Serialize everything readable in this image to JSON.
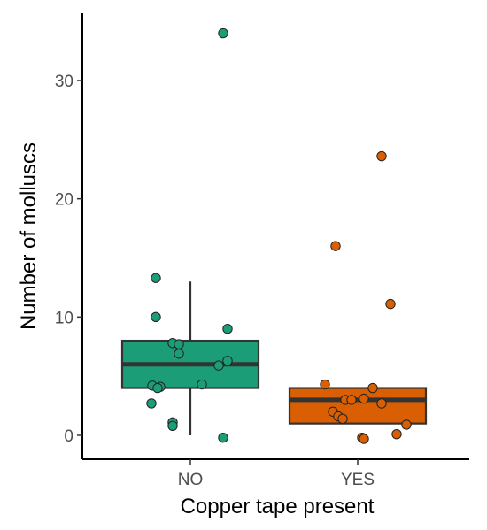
{
  "chart_data": {
    "type": "box",
    "title": "",
    "xlabel": "Copper tape present",
    "ylabel": "Number of molluscs",
    "categories": [
      "NO",
      "YES"
    ],
    "ylim": [
      -2,
      36
    ],
    "yticks": [
      0,
      10,
      20,
      30
    ],
    "grid": false,
    "legend": "none",
    "boxes": [
      {
        "category": "NO",
        "min": 0,
        "q1": 4,
        "median": 6,
        "q3": 8,
        "max": 13,
        "color": "#1b9e77"
      },
      {
        "category": "YES",
        "min": 1,
        "q1": 1,
        "median": 3,
        "q3": 4,
        "max": 4,
        "color": "#d95f02"
      }
    ],
    "points": [
      {
        "category": "NO",
        "values": [
          34,
          13.3,
          10,
          9,
          7.8,
          7.7,
          6.9,
          6.3,
          5.9,
          4.3,
          4.2,
          4.1,
          4.0,
          2.7,
          1.1,
          0.8,
          -0.2
        ]
      },
      {
        "category": "YES",
        "values": [
          23.6,
          16,
          11.1,
          4.3,
          4.0,
          3.1,
          3.0,
          3.0,
          2.7,
          2.0,
          1.6,
          1.4,
          0.9,
          0.1,
          -0.2,
          -0.3
        ]
      }
    ]
  }
}
